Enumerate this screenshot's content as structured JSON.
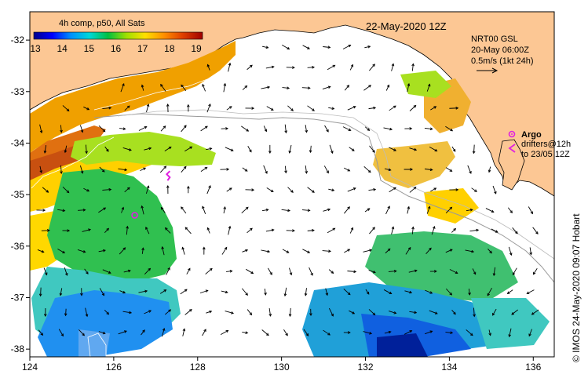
{
  "header": {
    "date_title": "22-May-2020 12Z",
    "colorbar_title": "4h comp, p50, All Sats",
    "colorbar_ticks": [
      "13",
      "14",
      "15",
      "16",
      "17",
      "18",
      "19"
    ],
    "colorbar_colors": [
      "#00008b",
      "#0000ff",
      "#0090ff",
      "#00d8d8",
      "#00c040",
      "#a0e000",
      "#ffe000",
      "#ff9000",
      "#e04000",
      "#a00000"
    ]
  },
  "current_legend": {
    "line1": "NRT00 GSL",
    "line2": "20-May 06:00Z",
    "line3": "0.5m/s (1kt 24h)"
  },
  "markers_legend": {
    "argo_label": "Argo",
    "drifters_line1": "drifters@12h",
    "drifters_line2": "to 23/05 12Z",
    "argo_color": "#e020e0",
    "drifter_color": "#e020e0"
  },
  "credit": "© IMOS 24-May-2020 09:07 Hobart",
  "axes": {
    "lon_ticks": [
      124,
      126,
      128,
      130,
      132,
      134,
      136
    ],
    "lat_ticks": [
      -32,
      -33,
      -34,
      -35,
      -36,
      -37,
      -38
    ],
    "lon_range": [
      124,
      136.5
    ],
    "lat_range": [
      -38.15,
      -31.45
    ]
  },
  "colors": {
    "land": "#fcc794",
    "ocean": "#ffffff",
    "frame": "#000000"
  },
  "observations": {
    "argo_floats": [
      {
        "lon": 126.5,
        "lat": -35.4
      }
    ],
    "drifters": [
      {
        "lon": 127.3,
        "lat": -34.65
      }
    ]
  }
}
